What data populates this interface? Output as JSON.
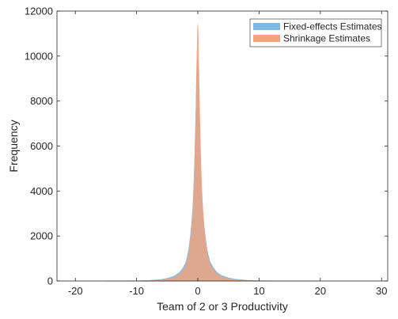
{
  "chart_data": {
    "type": "histogram",
    "title": "",
    "xlabel": "Team of 2 or 3 Productivity",
    "ylabel": "Frequency",
    "xlim": [
      -23,
      31
    ],
    "ylim": [
      0,
      12000
    ],
    "x_ticks": [
      -20,
      -10,
      0,
      10,
      20,
      30
    ],
    "y_ticks": [
      0,
      2000,
      4000,
      6000,
      8000,
      10000,
      12000
    ],
    "grid": false,
    "legend_position": "top-right",
    "series": [
      {
        "name": "Fixed-effects Estimates",
        "color": "#7fb8e3",
        "bins": [
          [
            -15,
            2
          ],
          [
            -12,
            5
          ],
          [
            -10,
            10
          ],
          [
            -8,
            25
          ],
          [
            -6,
            70
          ],
          [
            -5,
            120
          ],
          [
            -4,
            200
          ],
          [
            -3.5,
            280
          ],
          [
            -3,
            380
          ],
          [
            -2.5,
            550
          ],
          [
            -2,
            800
          ],
          [
            -1.75,
            1050
          ],
          [
            -1.5,
            1400
          ],
          [
            -1.25,
            1900
          ],
          [
            -1,
            2600
          ],
          [
            -0.8,
            3400
          ],
          [
            -0.6,
            4600
          ],
          [
            -0.45,
            5900
          ],
          [
            -0.3,
            7400
          ],
          [
            -0.2,
            8600
          ],
          [
            -0.1,
            9400
          ],
          [
            -0.05,
            9800
          ],
          [
            0,
            9900
          ],
          [
            0.05,
            9600
          ],
          [
            0.1,
            9000
          ],
          [
            0.2,
            8000
          ],
          [
            0.3,
            6800
          ],
          [
            0.45,
            5400
          ],
          [
            0.6,
            4200
          ],
          [
            0.8,
            3200
          ],
          [
            1,
            2500
          ],
          [
            1.25,
            1900
          ],
          [
            1.5,
            1400
          ],
          [
            1.75,
            1100
          ],
          [
            2,
            850
          ],
          [
            2.5,
            600
          ],
          [
            3,
            420
          ],
          [
            3.5,
            310
          ],
          [
            4,
            230
          ],
          [
            5,
            140
          ],
          [
            6,
            85
          ],
          [
            8,
            35
          ],
          [
            10,
            15
          ],
          [
            12,
            7
          ],
          [
            15,
            3
          ],
          [
            20,
            1
          ]
        ]
      },
      {
        "name": "Shrinkage Estimates",
        "color": "#f2a47e",
        "bins": [
          [
            -15,
            0
          ],
          [
            -12,
            2
          ],
          [
            -10,
            5
          ],
          [
            -8,
            15
          ],
          [
            -6,
            45
          ],
          [
            -5,
            80
          ],
          [
            -4,
            140
          ],
          [
            -3.5,
            210
          ],
          [
            -3,
            300
          ],
          [
            -2.5,
            450
          ],
          [
            -2,
            680
          ],
          [
            -1.75,
            920
          ],
          [
            -1.5,
            1250
          ],
          [
            -1.25,
            1750
          ],
          [
            -1,
            2450
          ],
          [
            -0.8,
            3300
          ],
          [
            -0.6,
            4600
          ],
          [
            -0.45,
            6100
          ],
          [
            -0.3,
            7900
          ],
          [
            -0.2,
            9400
          ],
          [
            -0.1,
            10600
          ],
          [
            -0.05,
            11200
          ],
          [
            0,
            11400
          ],
          [
            0.05,
            11000
          ],
          [
            0.1,
            10200
          ],
          [
            0.2,
            8900
          ],
          [
            0.3,
            7400
          ],
          [
            0.45,
            5700
          ],
          [
            0.6,
            4300
          ],
          [
            0.8,
            3200
          ],
          [
            1,
            2400
          ],
          [
            1.25,
            1750
          ],
          [
            1.5,
            1250
          ],
          [
            1.75,
            950
          ],
          [
            2,
            720
          ],
          [
            2.5,
            500
          ],
          [
            3,
            340
          ],
          [
            3.5,
            240
          ],
          [
            4,
            170
          ],
          [
            5,
            100
          ],
          [
            6,
            60
          ],
          [
            8,
            22
          ],
          [
            10,
            8
          ],
          [
            12,
            3
          ],
          [
            15,
            1
          ],
          [
            20,
            0
          ]
        ]
      }
    ]
  }
}
